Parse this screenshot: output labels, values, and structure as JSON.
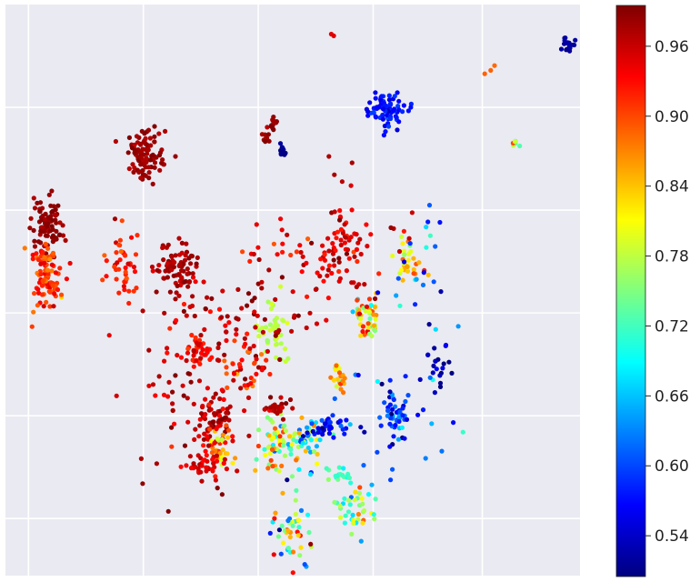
{
  "chart_data": {
    "type": "scatter",
    "title": "",
    "xlabel": "",
    "ylabel": "",
    "grid": true,
    "axis_facecolor": "#eaeaf2",
    "grid_color": "#ffffff",
    "colormap": "jet",
    "xlim": [
      0,
      100
    ],
    "ylim": [
      0,
      100
    ],
    "x_ticks": [
      4,
      24,
      44,
      64,
      83
    ],
    "y_ticks": [
      10,
      28,
      46,
      64,
      82
    ],
    "colorbar": {
      "range": [
        0.505,
        0.995
      ],
      "ticks": [
        0.54,
        0.6,
        0.66,
        0.72,
        0.78,
        0.84,
        0.9,
        0.96
      ],
      "tick_labels": [
        "0.54",
        "0.60",
        "0.66",
        "0.72",
        "0.78",
        "0.84",
        "0.90",
        "0.96"
      ]
    },
    "clusters": [
      {
        "cx": 7.2,
        "cy": 61.2,
        "sx": 1.4,
        "sy": 2.5,
        "n": 90,
        "v": 0.985,
        "sv": 0.008
      },
      {
        "cx": 7.2,
        "cy": 52.0,
        "sx": 1.3,
        "sy": 2.8,
        "n": 95,
        "v": 0.91,
        "sv": 0.02
      },
      {
        "cx": 24.3,
        "cy": 73.7,
        "sx": 1.6,
        "sy": 2.0,
        "n": 95,
        "v": 0.98,
        "sv": 0.01
      },
      {
        "cx": 29.8,
        "cy": 53.9,
        "sx": 1.8,
        "sy": 2.5,
        "n": 80,
        "v": 0.975,
        "sv": 0.012
      },
      {
        "cx": 20.5,
        "cy": 54.7,
        "sx": 1.5,
        "sy": 3.5,
        "n": 45,
        "v": 0.92,
        "sv": 0.02
      },
      {
        "cx": 66.2,
        "cy": 81.5,
        "sx": 1.4,
        "sy": 1.5,
        "n": 80,
        "v": 0.57,
        "sv": 0.012
      },
      {
        "cx": 98.0,
        "cy": 93.0,
        "sx": 0.5,
        "sy": 0.7,
        "n": 18,
        "v": 0.515,
        "sv": 0.006
      },
      {
        "cx": 46.6,
        "cy": 79.0,
        "sx": 0.5,
        "sy": 0.6,
        "n": 14,
        "v": 0.985,
        "sv": 0.008
      },
      {
        "cx": 45.4,
        "cy": 76.6,
        "sx": 0.4,
        "sy": 0.7,
        "n": 10,
        "v": 0.985,
        "sv": 0.008
      },
      {
        "cx": 48.4,
        "cy": 74.2,
        "sx": 0.4,
        "sy": 0.6,
        "n": 14,
        "v": 0.51,
        "sv": 0.006
      },
      {
        "cx": 58.3,
        "cy": 56.5,
        "sx": 1.8,
        "sy": 3.0,
        "n": 45,
        "v": 0.95,
        "sv": 0.02
      },
      {
        "cx": 63.5,
        "cy": 45.3,
        "sx": 1.3,
        "sy": 2.0,
        "n": 45,
        "v": 0.83,
        "sv": 0.06
      },
      {
        "cx": 70.5,
        "cy": 54.7,
        "sx": 1.1,
        "sy": 2.0,
        "n": 30,
        "v": 0.84,
        "sv": 0.04
      },
      {
        "cx": 46.9,
        "cy": 42.9,
        "sx": 1.3,
        "sy": 2.5,
        "n": 45,
        "v": 0.78,
        "sv": 0.01
      },
      {
        "cx": 42.1,
        "cy": 36.7,
        "sx": 2.0,
        "sy": 3.0,
        "n": 45,
        "v": 0.91,
        "sv": 0.04
      },
      {
        "cx": 33.8,
        "cy": 39.7,
        "sx": 1.6,
        "sy": 1.6,
        "n": 40,
        "v": 0.93,
        "sv": 0.02
      },
      {
        "cx": 36.2,
        "cy": 28.0,
        "sx": 1.9,
        "sy": 1.9,
        "n": 60,
        "v": 0.965,
        "sv": 0.015
      },
      {
        "cx": 37.7,
        "cy": 22.5,
        "sx": 1.2,
        "sy": 1.8,
        "n": 35,
        "v": 0.85,
        "sv": 0.05
      },
      {
        "cx": 34.3,
        "cy": 19.5,
        "sx": 1.8,
        "sy": 1.3,
        "n": 40,
        "v": 0.95,
        "sv": 0.015
      },
      {
        "cx": 47.5,
        "cy": 23.1,
        "sx": 2.0,
        "sy": 2.5,
        "n": 70,
        "v": 0.78,
        "sv": 0.08
      },
      {
        "cx": 52.6,
        "cy": 23.9,
        "sx": 1.5,
        "sy": 2.0,
        "n": 45,
        "v": 0.7,
        "sv": 0.1
      },
      {
        "cx": 56.6,
        "cy": 26.1,
        "sx": 1.6,
        "sy": 1.0,
        "n": 35,
        "v": 0.56,
        "sv": 0.025
      },
      {
        "cx": 67.8,
        "cy": 27.4,
        "sx": 1.2,
        "sy": 2.2,
        "n": 40,
        "v": 0.6,
        "sv": 0.05
      },
      {
        "cx": 47.3,
        "cy": 29.4,
        "sx": 1.3,
        "sy": 1.2,
        "n": 25,
        "v": 0.97,
        "sv": 0.015
      },
      {
        "cx": 58.3,
        "cy": 35.0,
        "sx": 0.6,
        "sy": 1.3,
        "n": 20,
        "v": 0.86,
        "sv": 0.04
      },
      {
        "cx": 50.2,
        "cy": 7.9,
        "sx": 1.7,
        "sy": 3.5,
        "n": 50,
        "v": 0.78,
        "sv": 0.1
      },
      {
        "cx": 60.6,
        "cy": 11.1,
        "sx": 1.7,
        "sy": 2.0,
        "n": 40,
        "v": 0.75,
        "sv": 0.06
      },
      {
        "cx": 58.3,
        "cy": 17.7,
        "sx": 1.0,
        "sy": 0.7,
        "n": 20,
        "v": 0.72,
        "sv": 0.02
      },
      {
        "cx": 75.2,
        "cy": 37.6,
        "sx": 1.0,
        "sy": 2.5,
        "n": 20,
        "v": 0.53,
        "sv": 0.02
      },
      {
        "cx": 39.5,
        "cy": 45.5,
        "sx": 8.0,
        "sy": 3.5,
        "n": 70,
        "v": 0.965,
        "sv": 0.02
      },
      {
        "cx": 57.0,
        "cy": 55.0,
        "sx": 7.0,
        "sy": 5.0,
        "n": 60,
        "v": 0.95,
        "sv": 0.03
      },
      {
        "cx": 72.5,
        "cy": 52.0,
        "sx": 3.0,
        "sy": 8.0,
        "n": 25,
        "v": 0.62,
        "sv": 0.06
      },
      {
        "cx": 32.0,
        "cy": 30.0,
        "sx": 5.0,
        "sy": 8.0,
        "n": 60,
        "v": 0.96,
        "sv": 0.03
      },
      {
        "cx": 65.0,
        "cy": 28.0,
        "sx": 5.0,
        "sy": 6.0,
        "n": 30,
        "v": 0.62,
        "sv": 0.06
      },
      {
        "cx": 58.5,
        "cy": 66.5,
        "sx": 1.5,
        "sy": 4.0,
        "n": 14,
        "v": 0.965,
        "sv": 0.02
      },
      {
        "cx": 85.0,
        "cy": 89.0,
        "sx": 1.0,
        "sy": 1.0,
        "n": 3,
        "v": 0.9,
        "sv": 0.01
      },
      {
        "cx": 88.5,
        "cy": 75.5,
        "sx": 0.5,
        "sy": 0.8,
        "n": 6,
        "v": 0.78,
        "sv": 0.09
      },
      {
        "cx": 57.0,
        "cy": 94.8,
        "sx": 0.3,
        "sy": 0.3,
        "n": 2,
        "v": 0.95,
        "sv": 0.005
      }
    ]
  }
}
